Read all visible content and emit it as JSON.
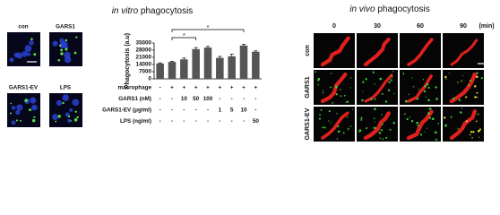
{
  "left_panel": {
    "title": [
      "in vitro",
      "phagocytosis"
    ],
    "images": [
      "con",
      "GARS1",
      "GARS1-EV",
      "LPS"
    ]
  },
  "chart_data": {
    "type": "bar",
    "y_label": "Phagocytosis (a.u)",
    "categories": [
      null,
      null,
      null,
      null,
      null,
      null,
      null,
      null,
      null
    ],
    "values": [
      15000,
      16500,
      19000,
      29000,
      30500,
      20500,
      22000,
      32500,
      26500
    ],
    "errors": [
      600,
      700,
      1300,
      1500,
      1200,
      1400,
      2000,
      1300,
      800
    ],
    "color": "#555555",
    "ylim": [
      0,
      35000
    ],
    "yticks": [
      0,
      7000,
      14000,
      21000,
      28000,
      35000
    ],
    "conditions": [
      {
        "label": "macrophage",
        "cells": [
          "-",
          "+",
          "+",
          "+",
          "+",
          "+",
          "+",
          "+",
          "+"
        ]
      },
      {
        "label": "GARS1 (nM)",
        "cells": [
          "-",
          "-",
          "10",
          "50",
          "100",
          "-",
          "-",
          "-",
          "-"
        ]
      },
      {
        "label": "GARS1-EV (μg/ml)",
        "cells": [
          "-",
          "-",
          "-",
          "-",
          "-",
          "1",
          "5",
          "10",
          "-"
        ]
      },
      {
        "label": "LPS (ng/ml)",
        "cells": [
          "-",
          "-",
          "-",
          "-",
          "-",
          "-",
          "-",
          "-",
          "50"
        ]
      }
    ],
    "significance": [
      {
        "groups": [
          1,
          3
        ],
        "label": "*"
      },
      {
        "groups": [
          1,
          7
        ],
        "label": "*"
      }
    ]
  },
  "right_panel": {
    "title": [
      "in vivo",
      "phagocytosis"
    ],
    "columns": [
      "0",
      "30",
      "60",
      "90"
    ],
    "unit": "(min)",
    "rows": [
      "con",
      "GARS1",
      "GARS1-EV"
    ]
  }
}
